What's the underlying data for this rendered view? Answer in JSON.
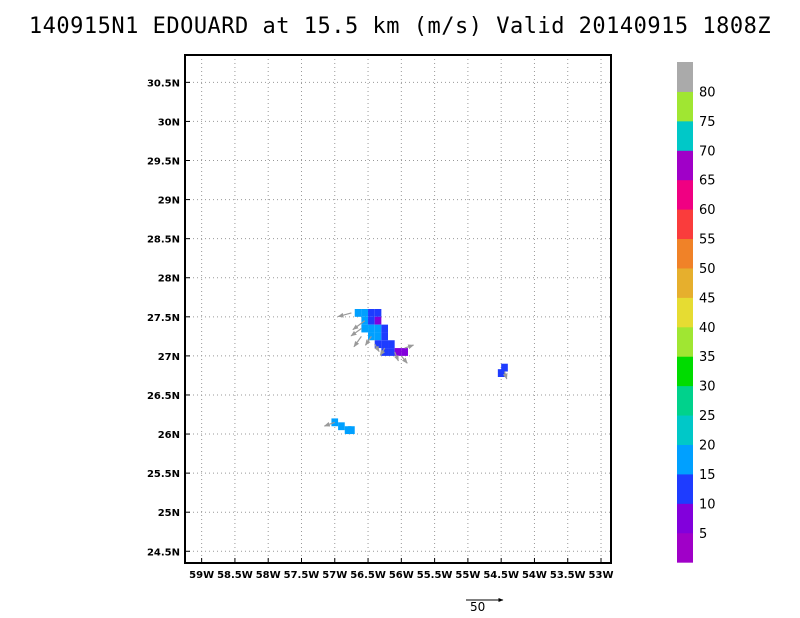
{
  "title": "140915N1 EDOUARD at 15.5 km (m/s) Valid 20140915  1808Z",
  "map": {
    "lon_range": [
      -59.25,
      -52.85
    ],
    "lat_range": [
      24.35,
      30.85
    ],
    "lon_ticks": [
      {
        "value": -59,
        "label": "59W"
      },
      {
        "value": -58.5,
        "label": "58.5W"
      },
      {
        "value": -58,
        "label": "58W"
      },
      {
        "value": -57.5,
        "label": "57.5W"
      },
      {
        "value": -57,
        "label": "57W"
      },
      {
        "value": -56.5,
        "label": "56.5W"
      },
      {
        "value": -56,
        "label": "56W"
      },
      {
        "value": -55.5,
        "label": "55.5W"
      },
      {
        "value": -55,
        "label": "55W"
      },
      {
        "value": -54.5,
        "label": "54.5W"
      },
      {
        "value": -54,
        "label": "54W"
      },
      {
        "value": -53.5,
        "label": "53.5W"
      },
      {
        "value": -53,
        "label": "53W"
      }
    ],
    "lat_ticks": [
      {
        "value": 24.5,
        "label": "24.5N"
      },
      {
        "value": 25,
        "label": "25N"
      },
      {
        "value": 25.5,
        "label": "25.5N"
      },
      {
        "value": 26,
        "label": "26N"
      },
      {
        "value": 26.5,
        "label": "26.5N"
      },
      {
        "value": 27,
        "label": "27N"
      },
      {
        "value": 27.5,
        "label": "27.5N"
      },
      {
        "value": 28,
        "label": "28N"
      },
      {
        "value": 28.5,
        "label": "28.5N"
      },
      {
        "value": 29,
        "label": "29N"
      },
      {
        "value": 29.5,
        "label": "29.5N"
      },
      {
        "value": 30,
        "label": "30N"
      },
      {
        "value": 30.5,
        "label": "30.5N"
      }
    ],
    "grid": true,
    "grid_color": "#999999",
    "arrow_color": "#9a9a9a",
    "cells": [
      {
        "lon": -56.65,
        "lat": 27.55,
        "value": 19
      },
      {
        "lon": -56.55,
        "lat": 27.55,
        "value": 19
      },
      {
        "lon": -56.45,
        "lat": 27.55,
        "value": 12
      },
      {
        "lon": -56.35,
        "lat": 27.55,
        "value": 12
      },
      {
        "lon": -56.55,
        "lat": 27.45,
        "value": 17
      },
      {
        "lon": -56.45,
        "lat": 27.45,
        "value": 13
      },
      {
        "lon": -56.35,
        "lat": 27.45,
        "value": 8
      },
      {
        "lon": -56.55,
        "lat": 27.35,
        "value": 19
      },
      {
        "lon": -56.45,
        "lat": 27.35,
        "value": 19
      },
      {
        "lon": -56.35,
        "lat": 27.35,
        "value": 19
      },
      {
        "lon": -56.25,
        "lat": 27.35,
        "value": 12
      },
      {
        "lon": -56.45,
        "lat": 27.25,
        "value": 19
      },
      {
        "lon": -56.35,
        "lat": 27.25,
        "value": 17
      },
      {
        "lon": -56.25,
        "lat": 27.25,
        "value": 12
      },
      {
        "lon": -56.35,
        "lat": 27.15,
        "value": 12
      },
      {
        "lon": -56.25,
        "lat": 27.15,
        "value": 11
      },
      {
        "lon": -56.15,
        "lat": 27.15,
        "value": 12
      },
      {
        "lon": -56.25,
        "lat": 27.05,
        "value": 12
      },
      {
        "lon": -56.15,
        "lat": 27.05,
        "value": 11
      },
      {
        "lon": -56.05,
        "lat": 27.05,
        "value": 8
      },
      {
        "lon": -55.95,
        "lat": 27.05,
        "value": 7
      },
      {
        "lon": -54.45,
        "lat": 26.85,
        "value": 12
      },
      {
        "lon": -54.5,
        "lat": 26.78,
        "value": 12
      },
      {
        "lon": -57.0,
        "lat": 26.15,
        "value": 17
      },
      {
        "lon": -56.9,
        "lat": 26.1,
        "value": 17
      },
      {
        "lon": -56.8,
        "lat": 26.05,
        "value": 17
      },
      {
        "lon": -56.75,
        "lat": 26.05,
        "value": 17
      }
    ],
    "vectors": [
      {
        "lon": -56.75,
        "lat": 27.55,
        "u": -18,
        "v": -5
      },
      {
        "lon": -56.55,
        "lat": 27.45,
        "u": -16,
        "v": -12
      },
      {
        "lon": -56.6,
        "lat": 27.35,
        "u": -14,
        "v": -10
      },
      {
        "lon": -56.6,
        "lat": 27.25,
        "u": -10,
        "v": -14
      },
      {
        "lon": -56.45,
        "lat": 27.25,
        "u": -8,
        "v": -12
      },
      {
        "lon": -56.4,
        "lat": 27.15,
        "u": 6,
        "v": -10
      },
      {
        "lon": -56.25,
        "lat": 27.1,
        "u": -6,
        "v": -10
      },
      {
        "lon": -56.1,
        "lat": 27.05,
        "u": 5,
        "v": -12
      },
      {
        "lon": -56.0,
        "lat": 27.0,
        "u": 8,
        "v": -10
      },
      {
        "lon": -55.95,
        "lat": 27.1,
        "u": 12,
        "v": 4
      },
      {
        "lon": -54.45,
        "lat": 26.8,
        "u": 3,
        "v": -10
      },
      {
        "lon": -57.0,
        "lat": 26.15,
        "u": -14,
        "v": -5
      }
    ]
  },
  "colorbar": {
    "bins": [
      {
        "color": "#a000c8"
      },
      {
        "color": "#8200dc"
      },
      {
        "color": "#1e3cff"
      },
      {
        "color": "#00a0ff"
      },
      {
        "color": "#00c8c8"
      },
      {
        "color": "#00d28c"
      },
      {
        "color": "#00dc00"
      },
      {
        "color": "#a0e632"
      },
      {
        "color": "#e6dc32"
      },
      {
        "color": "#e6af2d"
      },
      {
        "color": "#f08228"
      },
      {
        "color": "#fa3c3c"
      },
      {
        "color": "#f00082"
      },
      {
        "color": "#a000c8"
      },
      {
        "color": "#00c8c8"
      },
      {
        "color": "#a0e632"
      },
      {
        "color": "#aaaaaa"
      }
    ],
    "labels": [
      "5",
      "10",
      "15",
      "20",
      "25",
      "30",
      "35",
      "40",
      "45",
      "50",
      "55",
      "60",
      "65",
      "70",
      "75",
      "80"
    ]
  },
  "scale_arrow": {
    "label": "50"
  }
}
